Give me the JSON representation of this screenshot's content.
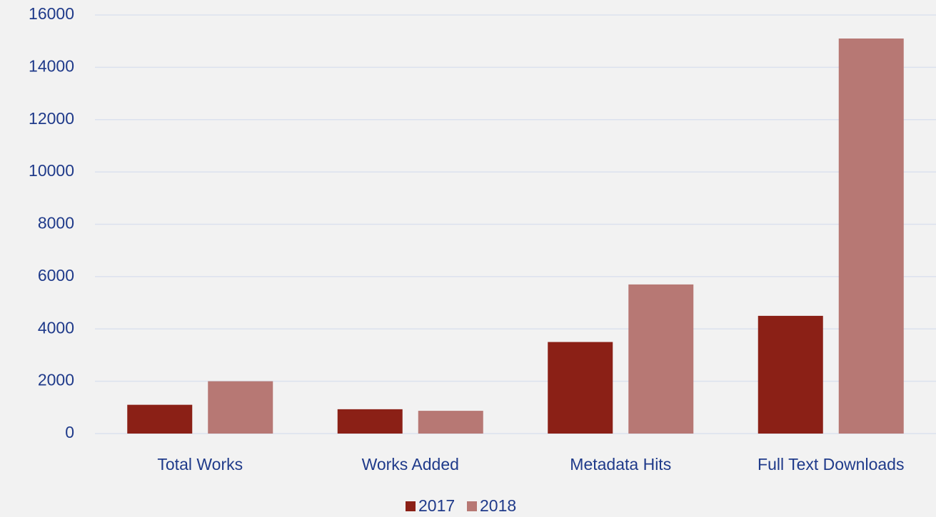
{
  "chart_data": {
    "type": "bar",
    "categories": [
      "Total Works",
      "Works Added",
      "Metadata Hits",
      "Full Text Downloads"
    ],
    "series": [
      {
        "name": "2017",
        "color": "#8b2016",
        "values": [
          1100,
          930,
          3500,
          4500
        ]
      },
      {
        "name": "2018",
        "color": "#b77874",
        "values": [
          2000,
          870,
          5700,
          15100
        ]
      }
    ],
    "ylim": [
      0,
      16000
    ],
    "yticks": [
      0,
      2000,
      4000,
      6000,
      8000,
      10000,
      12000,
      14000,
      16000
    ],
    "grid": true,
    "legend": "bottom"
  }
}
